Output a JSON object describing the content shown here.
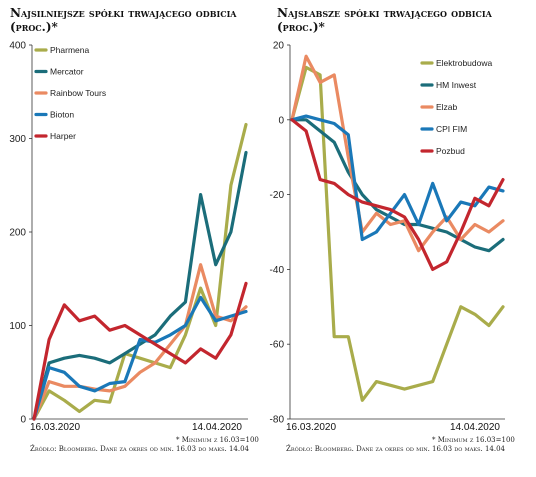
{
  "chart_data": [
    {
      "type": "line",
      "title": "Najsilniejsze spółki trwającego odbicia",
      "subtitle": "(proc.)*",
      "ylim": [
        0,
        400
      ],
      "yticks": [
        0,
        100,
        200,
        300,
        400
      ],
      "x_start_label": "16.03.2020",
      "x_end_label": "14.04.2020",
      "grid": false,
      "legend": "top-left",
      "series": [
        {
          "name": "Pharmena",
          "color": "#a9ac4b",
          "values": [
            0,
            30,
            20,
            8,
            20,
            18,
            70,
            65,
            60,
            55,
            90,
            140,
            100,
            250,
            315
          ]
        },
        {
          "name": "Mercator",
          "color": "#1b6d7a",
          "values": [
            0,
            60,
            65,
            68,
            65,
            60,
            70,
            80,
            90,
            110,
            125,
            240,
            165,
            200,
            285
          ]
        },
        {
          "name": "Rainbow Tours",
          "color": "#ea8a62",
          "values": [
            0,
            40,
            35,
            35,
            32,
            30,
            35,
            50,
            60,
            80,
            100,
            165,
            110,
            105,
            120
          ]
        },
        {
          "name": "Bioton",
          "color": "#1a78b8",
          "values": [
            0,
            55,
            50,
            35,
            30,
            38,
            40,
            85,
            82,
            90,
            100,
            130,
            105,
            110,
            115
          ]
        },
        {
          "name": "Harper",
          "color": "#c3262e",
          "values": [
            0,
            85,
            122,
            105,
            110,
            95,
            100,
            90,
            80,
            70,
            60,
            75,
            65,
            90,
            145
          ]
        }
      ]
    },
    {
      "type": "line",
      "title": "Najsłabsze spółki trwającego odbicia",
      "subtitle": "(proc.)*",
      "ylim": [
        -80,
        20
      ],
      "yticks": [
        -80,
        -60,
        -40,
        -20,
        0,
        20
      ],
      "x_start_label": "16.03.2020",
      "x_end_label": "14.04.2020",
      "grid": false,
      "legend": "top-right",
      "series": [
        {
          "name": "Elektrobudowa",
          "color": "#a9ac4b",
          "values": [
            0,
            14,
            12,
            -58,
            -58,
            -75,
            -70,
            -71,
            -72,
            -71,
            -70,
            -60,
            -50,
            -52,
            -55,
            -50
          ]
        },
        {
          "name": "HM Inwest",
          "color": "#1b6d7a",
          "values": [
            0,
            0,
            -3,
            -6,
            -14,
            -20,
            -24,
            -26,
            -28,
            -28,
            -29,
            -30,
            -32,
            -34,
            -35,
            -32
          ]
        },
        {
          "name": "Elzab",
          "color": "#ea8a62",
          "values": [
            0,
            17,
            10,
            12,
            -10,
            -30,
            -25,
            -28,
            -27,
            -35,
            -30,
            -26,
            -32,
            -28,
            -30,
            -27
          ]
        },
        {
          "name": "CPI FIM",
          "color": "#1a78b8",
          "values": [
            0,
            1,
            0,
            -1,
            -4,
            -32,
            -30,
            -25,
            -20,
            -28,
            -17,
            -27,
            -22,
            -23,
            -18,
            -19
          ]
        },
        {
          "name": "Pozbud",
          "color": "#c3262e",
          "values": [
            0,
            -3,
            -16,
            -17,
            -20,
            -22,
            -23,
            -24,
            -26,
            -32,
            -40,
            -38,
            -30,
            -21,
            -23,
            -16
          ]
        }
      ]
    }
  ],
  "notes": {
    "left_line1": "* Minimum z 16.03=100",
    "left_line2": "Źródło: Bloomberg. Dane za okres od min. 16.03 do maks. 14.04",
    "right_line1": "* Minimum z 16.03=100",
    "right_line2": "Źródło: Bloomberg. Dane za okres od min. 16.03 do maks. 14.04"
  }
}
